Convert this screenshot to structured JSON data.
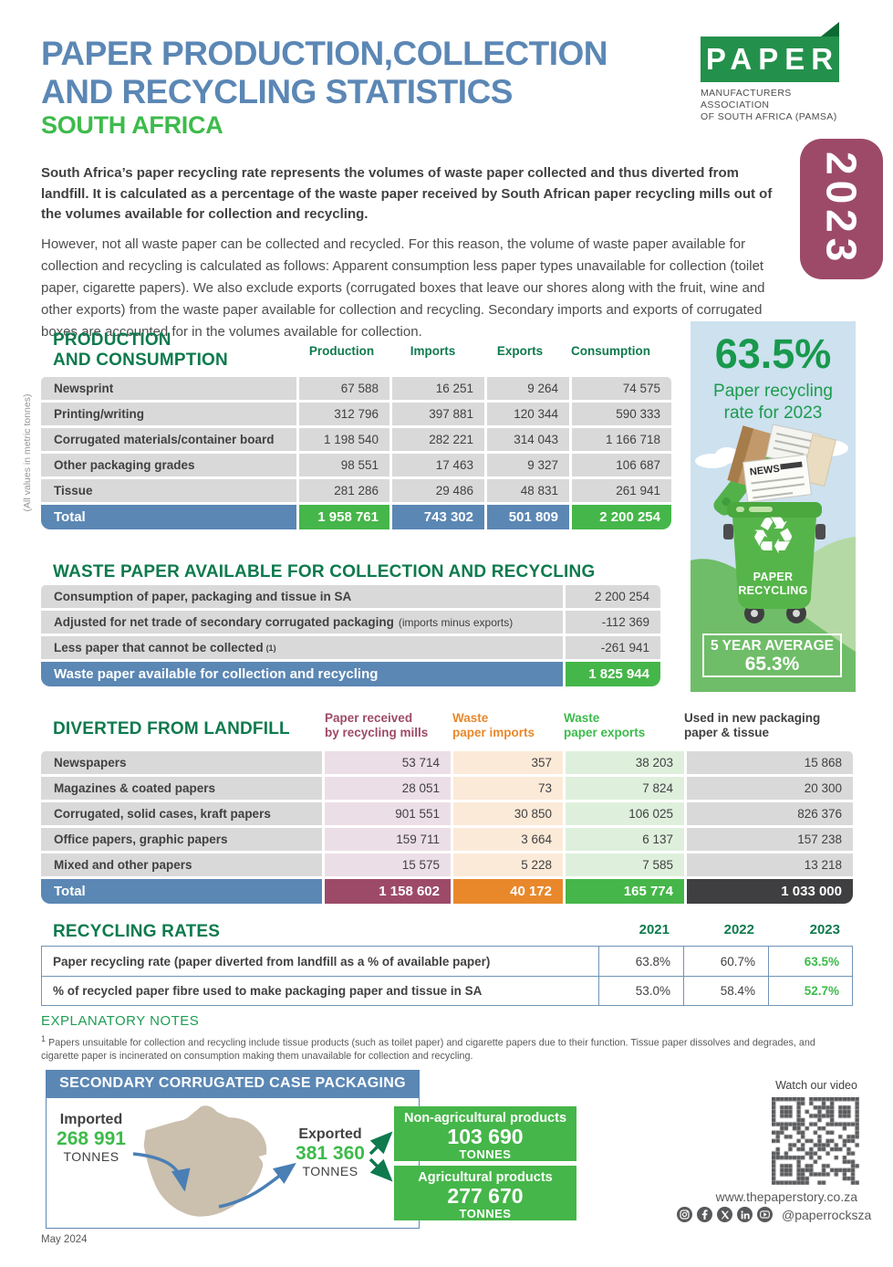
{
  "colors": {
    "steel_blue": "#5b87b5",
    "bright_green": "#3dbb4b",
    "dark_green": "#0e7a4e",
    "maroon": "#9d4a68",
    "orange": "#e8882b",
    "total_green": "#45b649",
    "table_grey": "#d9d9d9",
    "badge_maroon": "#9d4a68",
    "sky_blue": "#cde1ef"
  },
  "header": {
    "title_line1": "PAPER PRODUCTION,COLLECTION",
    "title_line2": "AND RECYCLING STATISTICS",
    "subtitle": "SOUTH AFRICA",
    "year_badge": "2023",
    "logo": {
      "name": "PAPER",
      "line1": "MANUFACTURERS ASSOCIATION",
      "line2": "OF SOUTH AFRICA (PAMSA)"
    }
  },
  "intro": {
    "paragraph1": "South Africa’s paper recycling rate represents the volumes of waste paper collected and thus diverted from landfill. It is calculated as a percentage of the waste paper received by South African paper recycling mills out of the volumes available for collection and recycling.",
    "paragraph2": "However, not all waste paper can be collected and recycled. For this reason, the volume of waste paper available for collection and recycling is calculated as follows: Apparent consumption less paper types unavailable for collection (toilet paper, cigarette papers). We also exclude exports (corrugated boxes that leave our shores along with the fruit, wine and other exports) from the waste paper available for collection and recycling. Secondary imports and exports of corrugated boxes are accounted for in the volumes available for collection."
  },
  "production_table": {
    "title_line1": "PRODUCTION",
    "title_line2": "AND CONSUMPTION",
    "side_note": "(All values in metric tonnes)",
    "columns": [
      "Production",
      "Imports",
      "Exports",
      "Consumption"
    ],
    "rows": [
      {
        "label": "Newsprint",
        "values": [
          "67 588",
          "16 251",
          "9 264",
          "74 575"
        ]
      },
      {
        "label": "Printing/writing",
        "values": [
          "312 796",
          "397 881",
          "120 344",
          "590 333"
        ]
      },
      {
        "label": "Corrugated materials/container board",
        "values": [
          "1 198 540",
          "282 221",
          "314 043",
          "1 166 718"
        ]
      },
      {
        "label": "Other packaging grades",
        "values": [
          "98 551",
          "17 463",
          "9 327",
          "106 687"
        ]
      },
      {
        "label": "Tissue",
        "values": [
          "281 286",
          "29 486",
          "48 831",
          "261 941"
        ]
      }
    ],
    "total": {
      "label": "Total",
      "values": [
        "1 958 761",
        "743 302",
        "501 809",
        "2 200 254"
      ]
    }
  },
  "recycling_panel": {
    "rate": "63.5%",
    "caption_line1": "Paper recycling",
    "caption_line2": "rate for 2023",
    "news_label": "NEWS",
    "recycle_glyph": "♻",
    "bin_line1": "PAPER",
    "bin_line2": "RECYCLING",
    "average_label": "5 YEAR AVERAGE",
    "average_value": "65.3%"
  },
  "waste_table": {
    "title": "WASTE PAPER AVAILABLE FOR COLLECTION AND RECYCLING",
    "rows": [
      {
        "label": "Consumption of paper, packaging and tissue in SA",
        "note": "",
        "sup": "",
        "value": "2 200 254"
      },
      {
        "label": "Adjusted for net trade of secondary corrugated packaging",
        "note": "(imports minus exports)",
        "sup": "",
        "value": "-112 369"
      },
      {
        "label": "Less paper that cannot be collected",
        "note": "",
        "sup": "(1)",
        "value": "-261 941"
      }
    ],
    "total": {
      "label": "Waste paper available for collection and recycling",
      "value": "1 825 944"
    }
  },
  "diverted_table": {
    "title": "DIVERTED FROM LANDFILL",
    "columns": [
      {
        "line1": "Paper received",
        "line2": "by recycling mills"
      },
      {
        "line1": "Waste",
        "line2": "paper imports"
      },
      {
        "line1": "Waste",
        "line2": "paper exports"
      },
      {
        "line1": "Used in new packaging",
        "line2": "paper & tissue"
      }
    ],
    "rows": [
      {
        "label": "Newspapers",
        "values": [
          "53 714",
          "357",
          "38 203",
          "15 868"
        ]
      },
      {
        "label": "Magazines & coated papers",
        "values": [
          "28 051",
          "73",
          "7 824",
          "20 300"
        ]
      },
      {
        "label": "Corrugated, solid cases, kraft papers",
        "values": [
          "901 551",
          "30 850",
          "106 025",
          "826 376"
        ]
      },
      {
        "label": "Office papers, graphic papers",
        "values": [
          "159 711",
          "3 664",
          "6 137",
          "157 238"
        ]
      },
      {
        "label": "Mixed and other papers",
        "values": [
          "15 575",
          "5 228",
          "7 585",
          "13 218"
        ]
      }
    ],
    "total": {
      "label": "Total",
      "values": [
        "1 158 602",
        "40 172",
        "165 774",
        "1 033 000"
      ]
    }
  },
  "recycling_rates": {
    "title": "RECYCLING RATES",
    "years": [
      "2021",
      "2022",
      "2023"
    ],
    "rows": [
      {
        "label": "Paper recycling rate (paper diverted from landfill as a % of available paper)",
        "values": [
          "63.8%",
          "60.7%",
          "63.5%"
        ]
      },
      {
        "label": "% of recycled paper fibre used to make packaging paper and tissue in SA",
        "values": [
          "53.0%",
          "58.4%",
          "52.7%"
        ]
      }
    ]
  },
  "notes": {
    "title": "EXPLANATORY NOTES",
    "sup": "1",
    "text": " Papers unsuitable for collection and recycling include tissue products (such as toilet paper) and cigarette papers due to their function. Tissue paper dissolves and degrades, and cigarette paper is incinerated on consumption making them unavailable for collection and recycling."
  },
  "packaging": {
    "title": "SECONDARY CORRUGATED CASE PACKAGING",
    "imported": {
      "label": "Imported",
      "value": "268 991",
      "unit": "TONNES"
    },
    "exported": {
      "label": "Exported",
      "value": "381 360",
      "unit": "TONNES"
    },
    "boxes": [
      {
        "label": "Non-agricultural products",
        "value": "103 690",
        "unit": "TONNES"
      },
      {
        "label": "Agricultural products",
        "value": "277 670",
        "unit": "TONNES"
      }
    ]
  },
  "media": {
    "watch_label": "Watch our video",
    "website": "www.thepaperstory.co.za",
    "handle": "@paperrocksza"
  },
  "footer": {
    "date": "May 2024"
  }
}
